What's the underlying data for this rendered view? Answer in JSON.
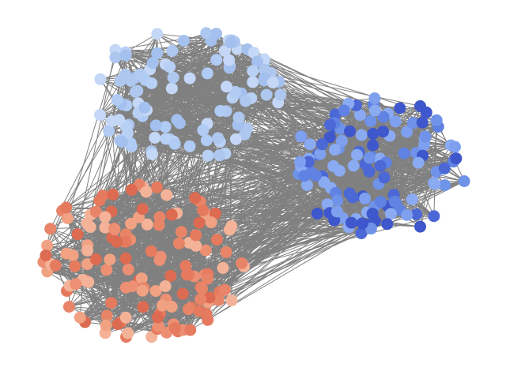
{
  "diagram": {
    "type": "network-graph",
    "layout": "force-directed",
    "edge_color": "#808080",
    "background": "#ffffff",
    "communities": [
      {
        "id": "A",
        "position": "top-left",
        "node_count": 110,
        "palette": [
          "#aec7ef",
          "#b9d0f5",
          "#a3c0ee",
          "#c4d7f6",
          "#b0cbf4"
        ]
      },
      {
        "id": "B",
        "position": "right",
        "node_count": 120,
        "palette": [
          "#6f93e8",
          "#5f82e3",
          "#7ea0ee",
          "#4b68d6",
          "#8aaaf2",
          "#3e57cc"
        ]
      },
      {
        "id": "C",
        "position": "bottom-left",
        "node_count": 140,
        "palette": [
          "#ec8f73",
          "#e57a5e",
          "#f0a283",
          "#dd6b51",
          "#f4b398",
          "#e88568"
        ]
      }
    ]
  }
}
